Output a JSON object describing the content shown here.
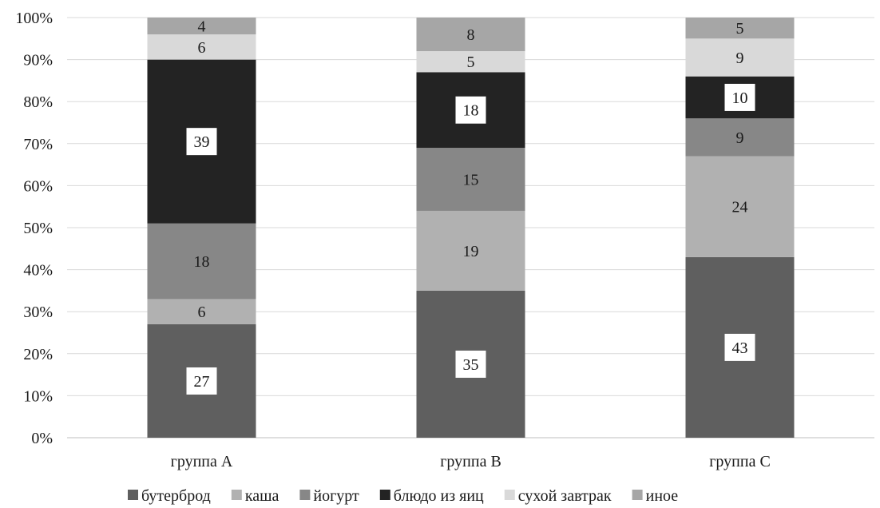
{
  "chart_data": {
    "type": "bar",
    "stacked": true,
    "percent": true,
    "categories": [
      "группа A",
      "группа B",
      "группа C"
    ],
    "ylim": [
      0,
      100
    ],
    "yticks": [
      "0%",
      "10%",
      "20%",
      "30%",
      "40%",
      "50%",
      "60%",
      "70%",
      "80%",
      "90%",
      "100%"
    ],
    "grid": true,
    "legend_position": "bottom",
    "series": [
      {
        "name": "бутерброд",
        "color": "#5f5f5f",
        "label_style": "boxed",
        "values": [
          27,
          35,
          43
        ]
      },
      {
        "name": "каша",
        "color": "#b1b1b1",
        "label_style": "plain",
        "values": [
          6,
          19,
          24
        ]
      },
      {
        "name": "йогурт",
        "color": "#878787",
        "label_style": "plain",
        "values": [
          18,
          15,
          9
        ]
      },
      {
        "name": "блюдо из яиц",
        "color": "#232323",
        "label_style": "boxed",
        "values": [
          39,
          18,
          10
        ]
      },
      {
        "name": "сухой завтрак",
        "color": "#d9d9d9",
        "label_style": "plain",
        "values": [
          6,
          5,
          9
        ]
      },
      {
        "name": "иное",
        "color": "#a6a6a6",
        "label_style": "plain",
        "values": [
          4,
          8,
          5
        ]
      }
    ]
  }
}
